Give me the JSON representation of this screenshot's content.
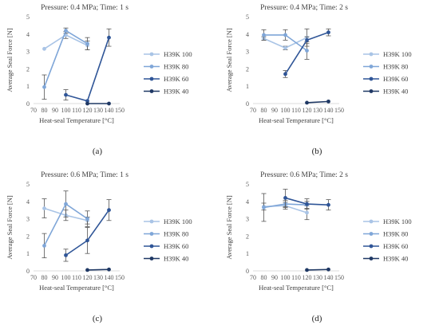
{
  "figure": {
    "panels": [
      {
        "id": "a",
        "caption": "(a)"
      },
      {
        "id": "b",
        "caption": "(b)"
      },
      {
        "id": "c",
        "caption": "(c)"
      },
      {
        "id": "d",
        "caption": "(d)"
      }
    ]
  },
  "chart_data": [
    {
      "panel": "a",
      "type": "line",
      "title": "Pressure: 0.4 MPa; Time: 1 s",
      "xlabel": "Heat-seal Temperature [°C]",
      "ylabel": "Average Seal Force [N]",
      "xlim": [
        70,
        150
      ],
      "ylim": [
        0,
        5
      ],
      "xticks": [
        70,
        80,
        90,
        100,
        110,
        120,
        130,
        140,
        150
      ],
      "yticks": [
        0,
        1,
        2,
        3,
        4,
        5
      ],
      "grid": false,
      "legend_position": "right",
      "series": [
        {
          "name": "H39K 100",
          "color": "#a9c4e6",
          "x": [
            80,
            100,
            120
          ],
          "y": [
            3.15,
            3.95,
            3.35
          ],
          "err": [
            0.0,
            0.2,
            0.25
          ]
        },
        {
          "name": "H39K 80",
          "color": "#7fa6d8",
          "x": [
            80,
            100,
            120
          ],
          "y": [
            0.95,
            4.2,
            3.45
          ],
          "err": [
            0.7,
            0.15,
            0.35
          ]
        },
        {
          "name": "H39K 60",
          "color": "#2f5597",
          "x": [
            100,
            120,
            140
          ],
          "y": [
            0.5,
            0.15,
            3.8
          ],
          "err": [
            0.3,
            0.0,
            0.5
          ]
        },
        {
          "name": "H39K 40",
          "color": "#1f3864",
          "x": [
            120,
            140
          ],
          "y": [
            0.0,
            0.0
          ],
          "err": [
            0.0,
            0.0
          ]
        }
      ]
    },
    {
      "panel": "b",
      "type": "line",
      "title": "Pressure: 0.4 MPa; Time: 2 s",
      "xlabel": "Heat-seal Temperature [°C]",
      "ylabel": "Average Seal Force [N]",
      "xlim": [
        70,
        150
      ],
      "ylim": [
        0,
        5
      ],
      "xticks": [
        70,
        80,
        90,
        100,
        110,
        120,
        130,
        140,
        150
      ],
      "yticks": [
        0,
        1,
        2,
        3,
        4,
        5
      ],
      "grid": false,
      "legend_position": "right",
      "series": [
        {
          "name": "H39K 100",
          "color": "#a9c4e6",
          "x": [
            80,
            100,
            120
          ],
          "y": [
            3.75,
            3.2,
            3.8
          ],
          "err": [
            0.1,
            0.1,
            0.5
          ]
        },
        {
          "name": "H39K 80",
          "color": "#7fa6d8",
          "x": [
            80,
            100,
            120
          ],
          "y": [
            3.95,
            3.95,
            3.05
          ],
          "err": [
            0.3,
            0.3,
            0.5
          ]
        },
        {
          "name": "H39K 60",
          "color": "#2f5597",
          "x": [
            100,
            120,
            140
          ],
          "y": [
            1.7,
            3.65,
            4.1
          ],
          "err": [
            0.2,
            0.2,
            0.2
          ]
        },
        {
          "name": "H39K 40",
          "color": "#1f3864",
          "x": [
            120,
            140
          ],
          "y": [
            0.05,
            0.12
          ],
          "err": [
            0.0,
            0.0
          ]
        }
      ]
    },
    {
      "panel": "c",
      "type": "line",
      "title": "Pressure: 0.6 MPa; Time: 1 s",
      "xlabel": "Heat-seal Temperature [°C]",
      "ylabel": "Average Seal Force [N]",
      "xlim": [
        70,
        150
      ],
      "ylim": [
        0,
        5
      ],
      "xticks": [
        70,
        80,
        90,
        100,
        110,
        120,
        130,
        140,
        150
      ],
      "yticks": [
        0,
        1,
        2,
        3,
        4,
        5
      ],
      "grid": false,
      "legend_position": "right",
      "series": [
        {
          "name": "H39K 100",
          "color": "#a9c4e6",
          "x": [
            80,
            100,
            120
          ],
          "y": [
            3.6,
            3.2,
            2.9
          ],
          "err": [
            0.55,
            0.3,
            0.2
          ]
        },
        {
          "name": "H39K 80",
          "color": "#7fa6d8",
          "x": [
            80,
            100,
            120
          ],
          "y": [
            1.45,
            3.85,
            3.0
          ],
          "err": [
            0.7,
            0.75,
            0.45
          ]
        },
        {
          "name": "H39K 60",
          "color": "#2f5597",
          "x": [
            100,
            120,
            140
          ],
          "y": [
            0.9,
            1.75,
            3.5
          ],
          "err": [
            0.35,
            0.75,
            0.6
          ]
        },
        {
          "name": "H39K 40",
          "color": "#1f3864",
          "x": [
            120,
            140
          ],
          "y": [
            0.05,
            0.08
          ],
          "err": [
            0.0,
            0.0
          ]
        }
      ]
    },
    {
      "panel": "d",
      "type": "line",
      "title": "Pressure: 0.6 MPa; Time: 2 s",
      "xlabel": "Heat-seal Temperature [°C]",
      "ylabel": "Average Seal Force [N]",
      "xlim": [
        70,
        150
      ],
      "ylim": [
        0,
        5
      ],
      "xticks": [
        70,
        80,
        90,
        100,
        110,
        120,
        130,
        140,
        150
      ],
      "yticks": [
        0,
        1,
        2,
        3,
        4,
        5
      ],
      "grid": false,
      "legend_position": "right",
      "series": [
        {
          "name": "H39K 100",
          "color": "#a9c4e6",
          "x": [
            80,
            100,
            120
          ],
          "y": [
            3.7,
            3.75,
            3.35
          ],
          "err": [
            0.2,
            0.2,
            0.4
          ]
        },
        {
          "name": "H39K 80",
          "color": "#7fa6d8",
          "x": [
            80,
            100,
            120
          ],
          "y": [
            3.65,
            3.85,
            3.8
          ],
          "err": [
            0.8,
            0.2,
            0.2
          ]
        },
        {
          "name": "H39K 60",
          "color": "#2f5597",
          "x": [
            100,
            120,
            140
          ],
          "y": [
            4.2,
            3.85,
            3.8
          ],
          "err": [
            0.5,
            0.3,
            0.3
          ]
        },
        {
          "name": "H39K 40",
          "color": "#1f3864",
          "x": [
            120,
            140
          ],
          "y": [
            0.05,
            0.08
          ],
          "err": [
            0.0,
            0.0
          ]
        }
      ]
    }
  ]
}
